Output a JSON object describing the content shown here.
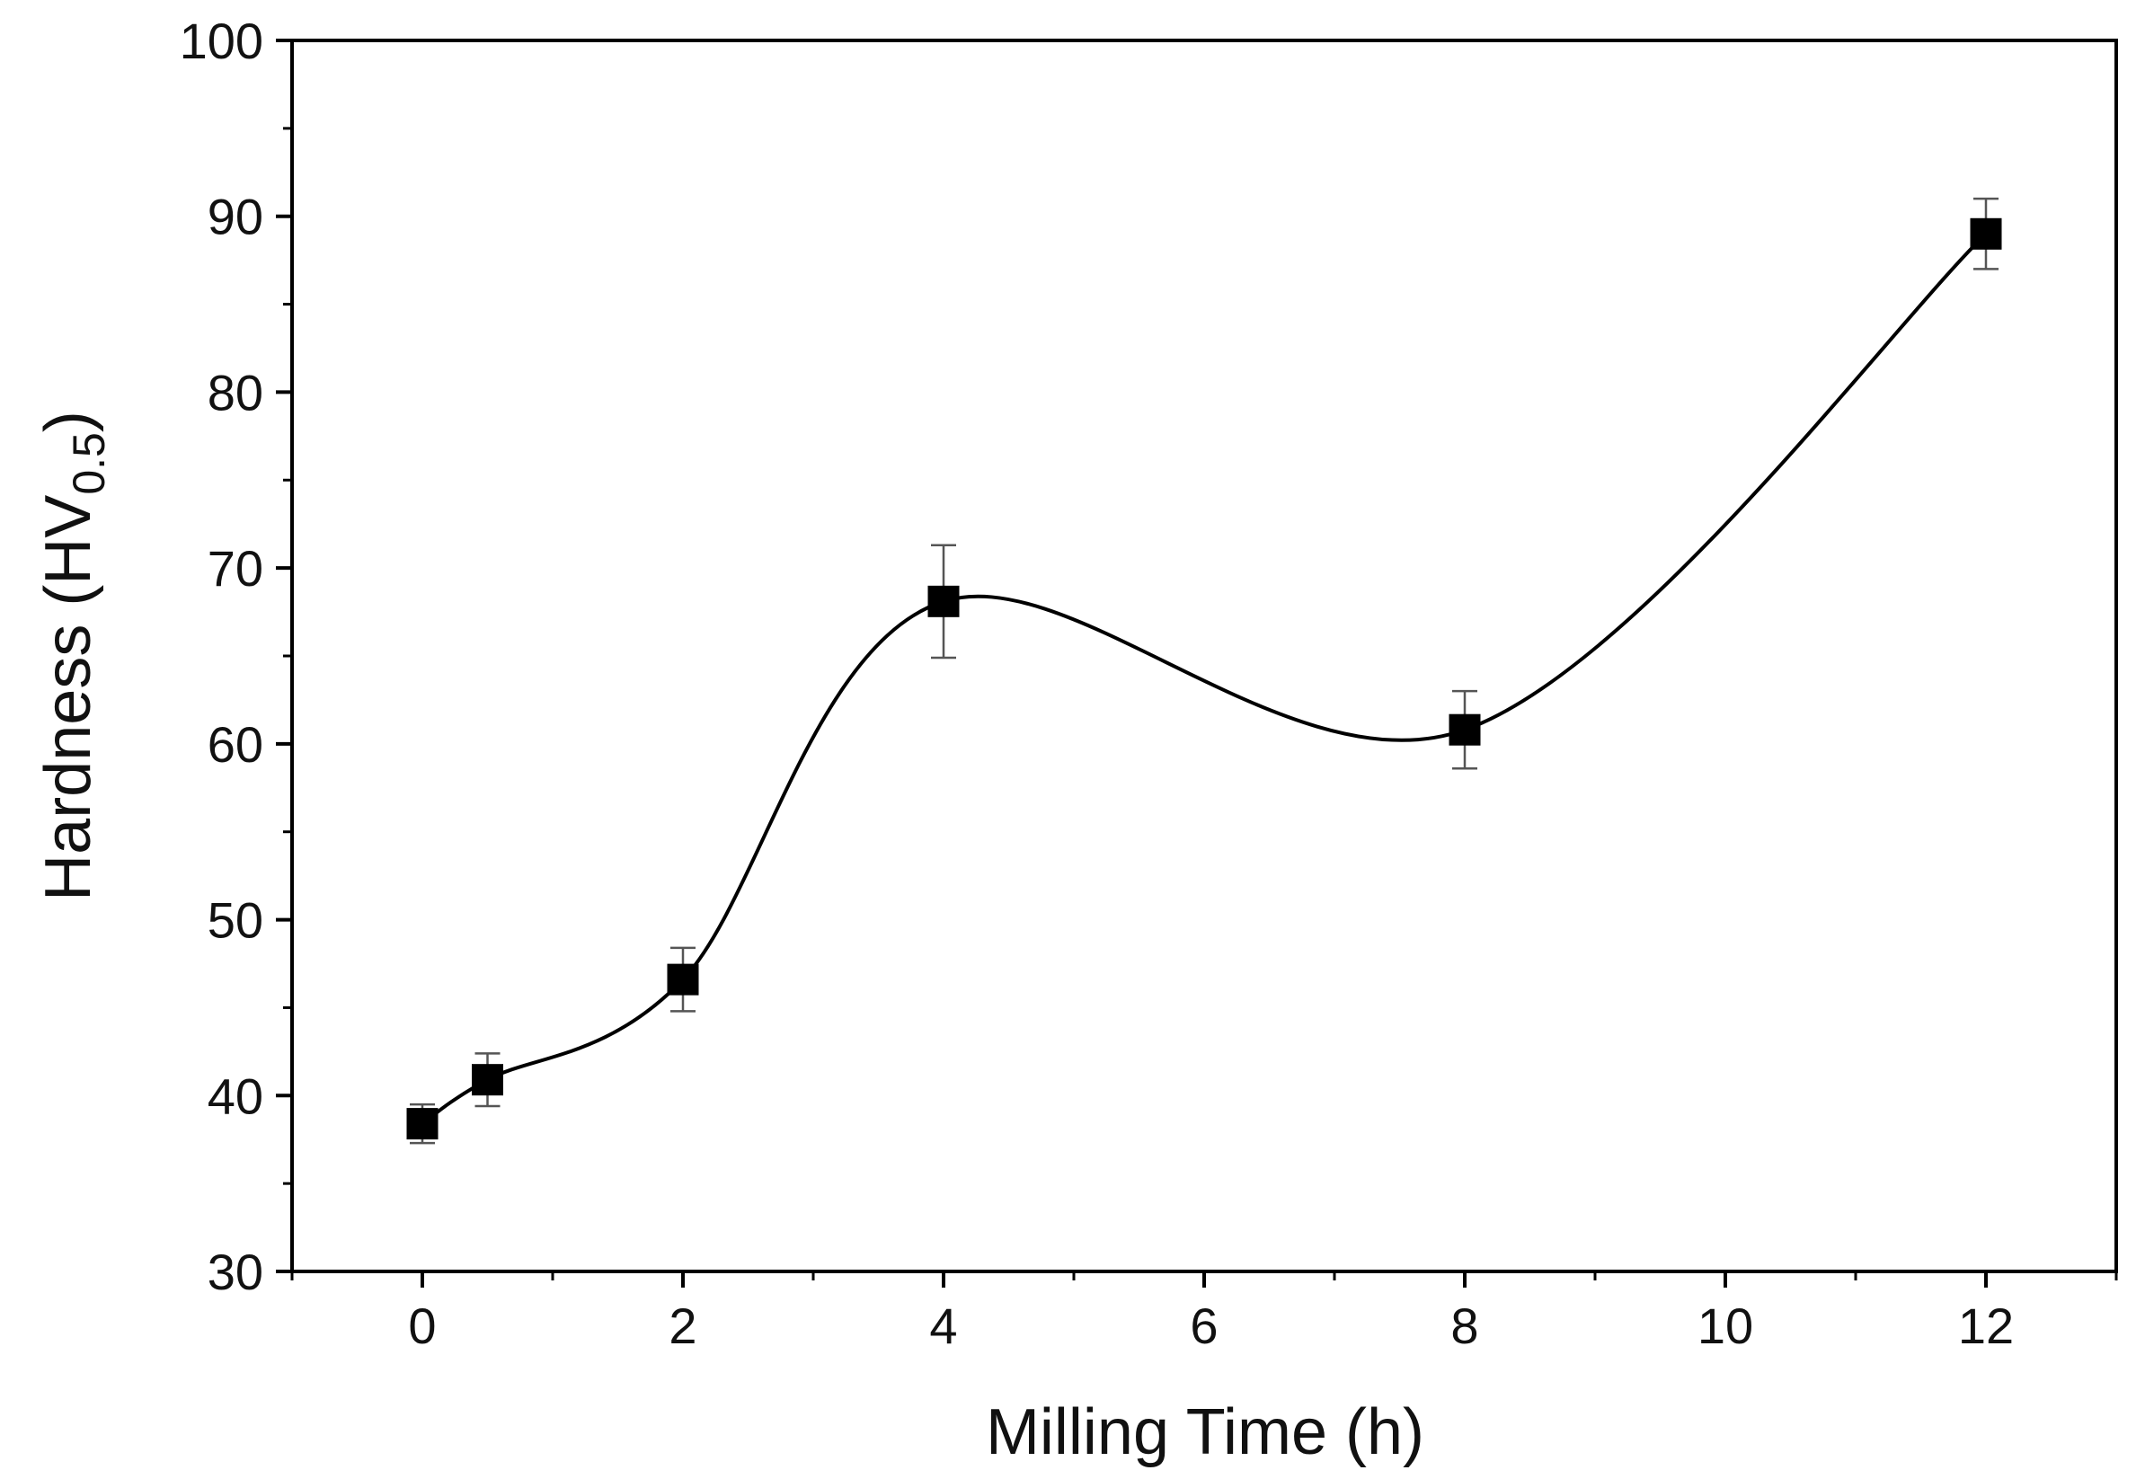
{
  "chart_data": {
    "type": "line",
    "title": "",
    "xlabel": "Milling Time (h)",
    "ylabel": {
      "prefix": "Hardness (HV",
      "subscript": "0.5",
      "suffix": ")"
    },
    "xlim": [
      -1,
      13
    ],
    "ylim": [
      30,
      100
    ],
    "xticks": [
      0,
      2,
      4,
      6,
      8,
      10,
      12
    ],
    "yticks": [
      30,
      40,
      50,
      60,
      70,
      80,
      90,
      100
    ],
    "xtick_labels": [
      "0",
      "2",
      "4",
      "6",
      "8",
      "10",
      "12"
    ],
    "ytick_labels": [
      "30",
      "40",
      "50",
      "60",
      "70",
      "80",
      "90",
      "100"
    ],
    "x_minor_step": 1,
    "y_minor_step": 5,
    "grid": false,
    "series": [
      {
        "name": "Hardness",
        "marker": "square",
        "color": "#000000",
        "smooth": true,
        "x": [
          0,
          0.5,
          2,
          4,
          8,
          12
        ],
        "y": [
          38.4,
          40.9,
          46.6,
          68.1,
          60.8,
          89.0
        ],
        "error": [
          1.1,
          1.5,
          1.8,
          3.2,
          2.2,
          2.0
        ]
      }
    ]
  }
}
